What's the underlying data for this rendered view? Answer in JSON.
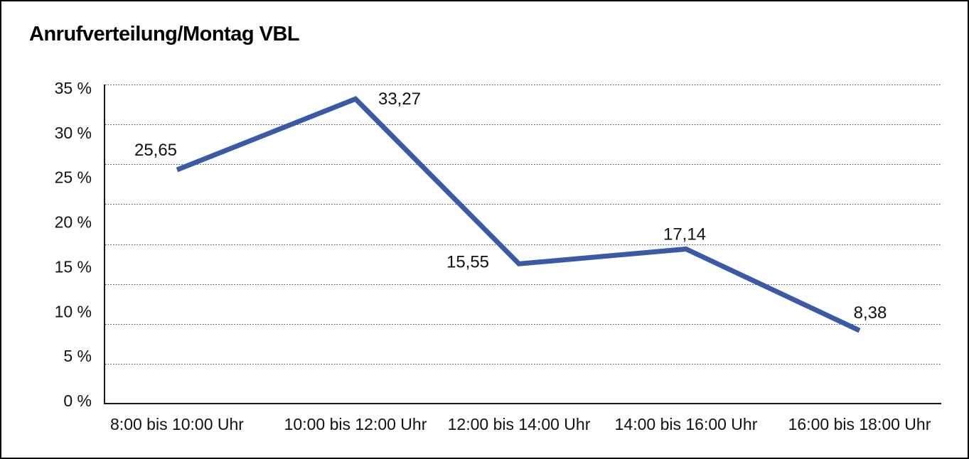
{
  "frame": {
    "background": "#ffffff",
    "border_color": "#000000"
  },
  "chart_data": {
    "type": "line",
    "title": "Anrufverteilung/Montag VBL",
    "categories": [
      "8:00 bis 10:00 Uhr",
      "10:00 bis 12:00 Uhr",
      "12:00 bis 14:00 Uhr",
      "14:00 bis 16:00 Uhr",
      "16:00 bis 18:00 Uhr"
    ],
    "series": [
      {
        "name": "Anrufverteilung Montag VBL",
        "values": [
          25.65,
          33.27,
          15.55,
          17.14,
          8.38
        ]
      }
    ],
    "value_labels": [
      "25,65",
      "33,27",
      "15,55",
      "17,14",
      "8,38"
    ],
    "y_tick_labels": [
      "35 %",
      "30 %",
      "25 %",
      "20 %",
      "15 %",
      "10 %",
      "5 %",
      "0 %"
    ],
    "ylim": [
      0,
      35
    ],
    "y_tick_step": 5,
    "unit": "%",
    "decimal_separator": ",",
    "grid": "horizontal-dotted",
    "legend": "none",
    "xlabel": "",
    "ylabel": "",
    "colors": {
      "line": "#3a5aa6",
      "axis": "#1a1a1a",
      "gridline": "#444444",
      "text": "#111111"
    }
  }
}
